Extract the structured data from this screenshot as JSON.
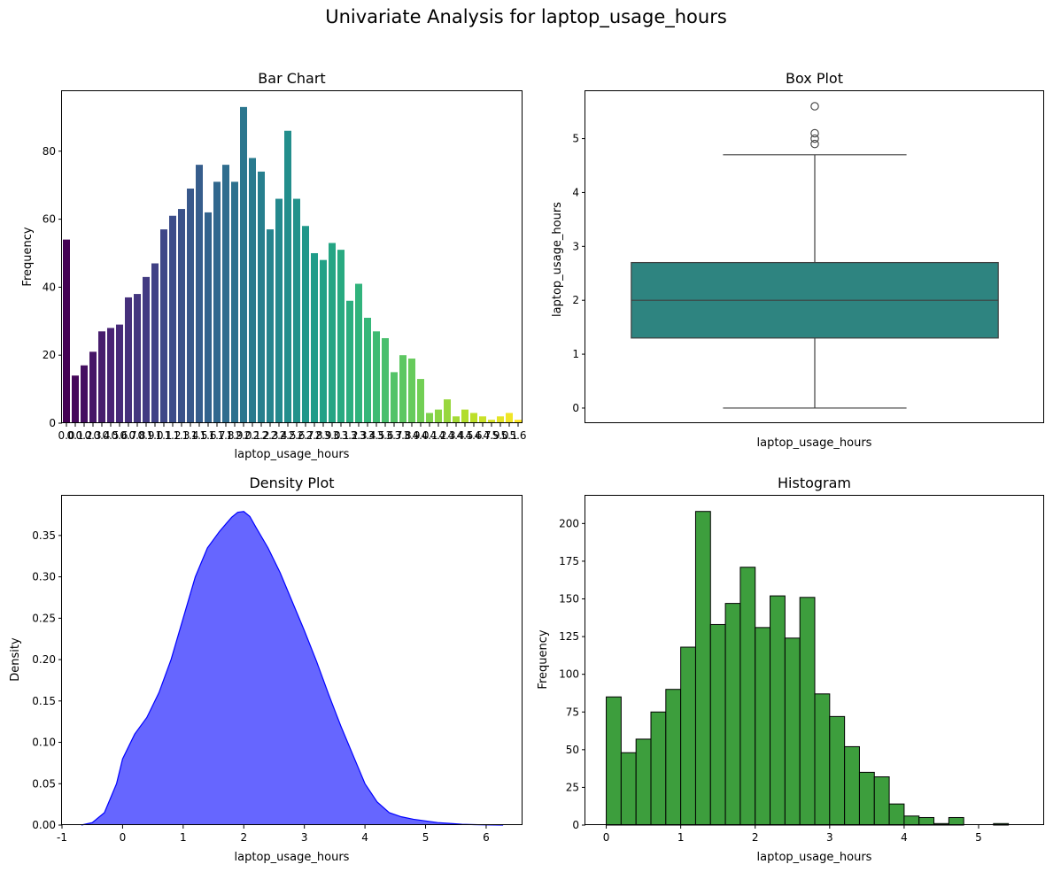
{
  "figure": {
    "title": "Univariate Analysis for laptop_usage_hours"
  },
  "chart_data": [
    {
      "type": "bar",
      "title": "Bar Chart",
      "xlabel": "laptop_usage_hours",
      "ylabel": "Frequency",
      "palette": "viridis",
      "categories": [
        "0.0",
        "0.1",
        "0.2",
        "0.3",
        "0.4",
        "0.5",
        "0.6",
        "0.7",
        "0.8",
        "0.9",
        "1.0",
        "1.1",
        "1.2",
        "1.3",
        "1.4",
        "1.5",
        "1.6",
        "1.7",
        "1.8",
        "1.9",
        "2.0",
        "2.1",
        "2.2",
        "2.3",
        "2.4",
        "2.5",
        "2.6",
        "2.7",
        "2.8",
        "2.9",
        "3.0",
        "3.1",
        "3.2",
        "3.3",
        "3.4",
        "3.5",
        "3.6",
        "3.7",
        "3.8",
        "3.9",
        "4.0",
        "4.1",
        "4.2",
        "4.3",
        "4.4",
        "4.5",
        "4.6",
        "4.7",
        "4.9",
        "5.0",
        "5.1",
        "5.6"
      ],
      "values": [
        54,
        14,
        17,
        21,
        27,
        28,
        29,
        37,
        38,
        43,
        47,
        57,
        61,
        63,
        69,
        76,
        62,
        71,
        76,
        71,
        93,
        78,
        74,
        57,
        66,
        86,
        66,
        58,
        50,
        48,
        53,
        51,
        36,
        41,
        31,
        27,
        25,
        15,
        20,
        19,
        13,
        3,
        4,
        7,
        2,
        4,
        3,
        2,
        1,
        2,
        3,
        1
      ],
      "yticks": [
        0,
        20,
        40,
        60,
        80
      ],
      "ylim": [
        0,
        97.65
      ]
    },
    {
      "type": "box",
      "title": "Box Plot",
      "xlabel": "laptop_usage_hours",
      "ylabel": "laptop_usage_hours",
      "color": "#2e8480",
      "q1": 1.3,
      "median": 2.0,
      "q3": 2.7,
      "whisker_low": 0.0,
      "whisker_high": 4.7,
      "outliers": [
        4.9,
        5.0,
        5.1,
        5.6
      ],
      "yticks": [
        0,
        1,
        2,
        3,
        4,
        5
      ],
      "ylim": [
        -0.28,
        5.88
      ]
    },
    {
      "type": "area",
      "title": "Density Plot",
      "xlabel": "laptop_usage_hours",
      "ylabel": "Density",
      "fill_color": "#6666ff",
      "line_color": "#0000ff",
      "x": [
        -0.68,
        -0.5,
        -0.3,
        -0.1,
        0.0,
        0.2,
        0.4,
        0.6,
        0.8,
        1.0,
        1.2,
        1.4,
        1.6,
        1.8,
        1.9,
        2.0,
        2.1,
        2.2,
        2.4,
        2.6,
        2.8,
        3.0,
        3.2,
        3.4,
        3.6,
        3.8,
        4.0,
        4.2,
        4.4,
        4.6,
        4.8,
        5.0,
        5.2,
        5.4,
        5.6,
        5.8,
        6.0,
        6.28
      ],
      "y": [
        0.0,
        0.003,
        0.015,
        0.05,
        0.08,
        0.11,
        0.13,
        0.16,
        0.2,
        0.25,
        0.3,
        0.335,
        0.355,
        0.372,
        0.378,
        0.379,
        0.373,
        0.36,
        0.335,
        0.305,
        0.27,
        0.235,
        0.198,
        0.158,
        0.12,
        0.085,
        0.05,
        0.028,
        0.015,
        0.01,
        0.007,
        0.005,
        0.003,
        0.002,
        0.001,
        0.0005,
        0.0002,
        0.0
      ],
      "xticks": [
        -1,
        0,
        1,
        2,
        3,
        4,
        5,
        6
      ],
      "yticks": [
        0.0,
        0.05,
        0.1,
        0.15,
        0.2,
        0.25,
        0.3,
        0.35
      ],
      "xlim": [
        -1.0,
        6.6
      ],
      "ylim": [
        0.0,
        0.398
      ]
    },
    {
      "type": "histogram",
      "title": "Histogram",
      "xlabel": "laptop_usage_hours",
      "ylabel": "Frequency",
      "color": "#3d9e3d",
      "bin_start": 0.0,
      "bin_width": 0.2,
      "values": [
        85,
        48,
        57,
        75,
        90,
        118,
        208,
        133,
        147,
        171,
        131,
        152,
        124,
        151,
        87,
        72,
        52,
        35,
        32,
        14,
        6,
        5,
        1,
        5,
        0,
        0,
        1
      ],
      "xticks": [
        0,
        1,
        2,
        3,
        4,
        5
      ],
      "yticks": [
        0,
        25,
        50,
        75,
        100,
        125,
        150,
        175,
        200
      ],
      "xlim": [
        -0.28,
        5.88
      ],
      "ylim": [
        0,
        218.4
      ]
    }
  ]
}
